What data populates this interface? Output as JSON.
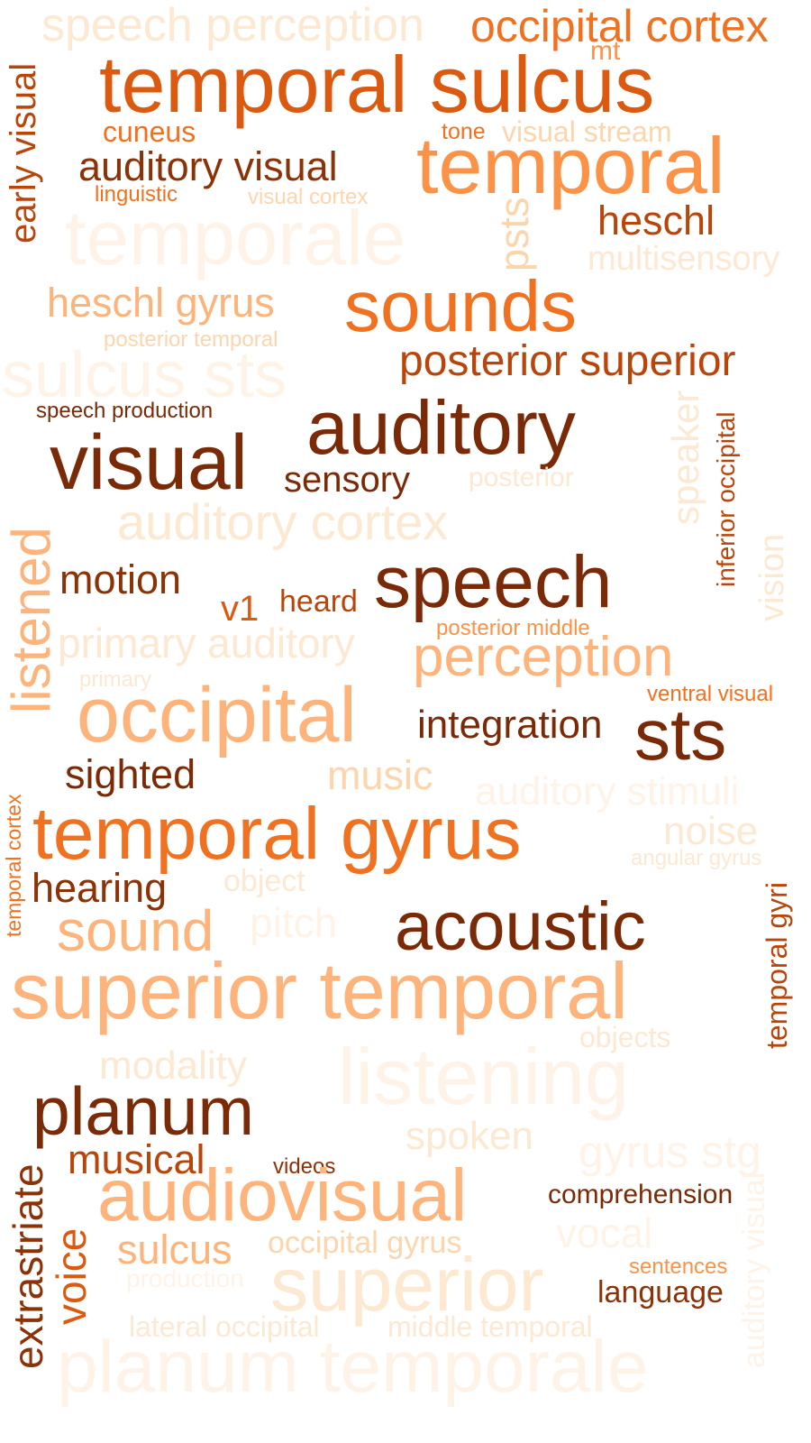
{
  "colors": {
    "c1": "#fde8d2",
    "c2": "#fdd5ad",
    "c3": "#fdb37a",
    "c4": "#fb9245",
    "c5": "#f07221",
    "c6": "#dc5a0f",
    "c7": "#b8450a",
    "c8": "#8c3207",
    "c9": "#7a2a06",
    "c0": "#fff3e8"
  },
  "words": [
    {
      "id": "speech-perception",
      "text": "speech perception",
      "color": "c1",
      "rot": false
    },
    {
      "id": "occipital-cortex",
      "text": "occipital cortex",
      "color": "c5",
      "rot": false
    },
    {
      "id": "mt",
      "text": "mt",
      "color": "c4",
      "rot": false
    },
    {
      "id": "temporal-sulcus",
      "text": "temporal sulcus",
      "color": "c6",
      "rot": false
    },
    {
      "id": "early-visual",
      "text": "early visual",
      "color": "c7",
      "rot": true
    },
    {
      "id": "cuneus",
      "text": "cuneus",
      "color": "c5",
      "rot": false
    },
    {
      "id": "tone",
      "text": "tone",
      "color": "c5",
      "rot": false
    },
    {
      "id": "visual-stream",
      "text": "visual stream",
      "color": "c2",
      "rot": false
    },
    {
      "id": "auditory-visual",
      "text": "auditory visual",
      "color": "c8",
      "rot": false
    },
    {
      "id": "temporal",
      "text": "temporal",
      "color": "c4",
      "rot": false
    },
    {
      "id": "linguistic",
      "text": "linguistic",
      "color": "c5",
      "rot": false
    },
    {
      "id": "visual-cortex",
      "text": "visual cortex",
      "color": "c2",
      "rot": false
    },
    {
      "id": "temporale",
      "text": "temporale",
      "color": "c0",
      "rot": false
    },
    {
      "id": "psts",
      "text": "psts",
      "color": "c2",
      "rot": true
    },
    {
      "id": "heschl",
      "text": "heschl",
      "color": "c7",
      "rot": false
    },
    {
      "id": "multisensory",
      "text": "multisensory",
      "color": "c1",
      "rot": false
    },
    {
      "id": "heschl-gyrus",
      "text": "heschl gyrus",
      "color": "c3",
      "rot": false
    },
    {
      "id": "sounds",
      "text": "sounds",
      "color": "c5",
      "rot": false
    },
    {
      "id": "posterior-temporal",
      "text": "posterior temporal",
      "color": "c2",
      "rot": false
    },
    {
      "id": "sulcus-sts",
      "text": "sulcus sts",
      "color": "c0",
      "rot": false
    },
    {
      "id": "posterior-superior",
      "text": "posterior superior",
      "color": "c7",
      "rot": false
    },
    {
      "id": "speech-production",
      "text": "speech production",
      "color": "c9",
      "rot": false
    },
    {
      "id": "auditory",
      "text": "auditory",
      "color": "c9",
      "rot": false
    },
    {
      "id": "speaker",
      "text": "speaker",
      "color": "c1",
      "rot": true
    },
    {
      "id": "inferior-occipital",
      "text": "inferior occipital",
      "color": "c7",
      "rot": true
    },
    {
      "id": "visual",
      "text": "visual",
      "color": "c9",
      "rot": false
    },
    {
      "id": "sensory",
      "text": "sensory",
      "color": "c9",
      "rot": false
    },
    {
      "id": "posterior",
      "text": "posterior",
      "color": "c1",
      "rot": false
    },
    {
      "id": "auditory-cortex",
      "text": "auditory cortex",
      "color": "c1",
      "rot": false
    },
    {
      "id": "listened",
      "text": "listened",
      "color": "c3",
      "rot": true
    },
    {
      "id": "motion",
      "text": "motion",
      "color": "c8",
      "rot": false
    },
    {
      "id": "speech",
      "text": "speech",
      "color": "c9",
      "rot": false
    },
    {
      "id": "vision",
      "text": "vision",
      "color": "c1",
      "rot": true
    },
    {
      "id": "v1",
      "text": "v1",
      "color": "c6",
      "rot": false
    },
    {
      "id": "heard",
      "text": "heard",
      "color": "c7",
      "rot": false
    },
    {
      "id": "posterior-middle",
      "text": "posterior middle",
      "color": "c4",
      "rot": false
    },
    {
      "id": "primary-auditory",
      "text": "primary auditory",
      "color": "c1",
      "rot": false
    },
    {
      "id": "perception",
      "text": "perception",
      "color": "c3",
      "rot": false
    },
    {
      "id": "primary",
      "text": "primary",
      "color": "c1",
      "rot": false
    },
    {
      "id": "ventral-visual",
      "text": "ventral visual",
      "color": "c5",
      "rot": false
    },
    {
      "id": "occipital",
      "text": "occipital",
      "color": "c3",
      "rot": false
    },
    {
      "id": "integration",
      "text": "integration",
      "color": "c9",
      "rot": false
    },
    {
      "id": "sts",
      "text": "sts",
      "color": "c9",
      "rot": false
    },
    {
      "id": "sighted",
      "text": "sighted",
      "color": "c9",
      "rot": false
    },
    {
      "id": "music",
      "text": "music",
      "color": "c2",
      "rot": false
    },
    {
      "id": "auditory-stimuli",
      "text": "auditory stimuli",
      "color": "c0",
      "rot": false
    },
    {
      "id": "temporal-cortex",
      "text": "temporal cortex",
      "color": "c5",
      "rot": true
    },
    {
      "id": "temporal-gyrus",
      "text": "temporal gyrus",
      "color": "c5",
      "rot": false
    },
    {
      "id": "noise",
      "text": "noise",
      "color": "c1",
      "rot": false
    },
    {
      "id": "angular-gyrus",
      "text": "angular gyrus",
      "color": "c1",
      "rot": false
    },
    {
      "id": "hearing",
      "text": "hearing",
      "color": "c8",
      "rot": false
    },
    {
      "id": "object",
      "text": "object",
      "color": "c1",
      "rot": false
    },
    {
      "id": "sound",
      "text": "sound",
      "color": "c3",
      "rot": false
    },
    {
      "id": "pitch",
      "text": "pitch",
      "color": "c0",
      "rot": false
    },
    {
      "id": "acoustic",
      "text": "acoustic",
      "color": "c9",
      "rot": false
    },
    {
      "id": "temporal-gyri",
      "text": "temporal gyri",
      "color": "c7",
      "rot": true
    },
    {
      "id": "superior-temporal",
      "text": "superior temporal",
      "color": "c3",
      "rot": false
    },
    {
      "id": "objects",
      "text": "objects",
      "color": "c1",
      "rot": false
    },
    {
      "id": "modality",
      "text": "modality",
      "color": "c1",
      "rot": false
    },
    {
      "id": "listening",
      "text": "listening",
      "color": "c0",
      "rot": false
    },
    {
      "id": "planum",
      "text": "planum",
      "color": "c9",
      "rot": false
    },
    {
      "id": "spoken",
      "text": "spoken",
      "color": "c1",
      "rot": false
    },
    {
      "id": "gyrus-stg",
      "text": "gyrus stg",
      "color": "c0",
      "rot": false
    },
    {
      "id": "musical",
      "text": "musical",
      "color": "c7",
      "rot": false
    },
    {
      "id": "videos",
      "text": "videos",
      "color": "c8",
      "rot": false
    },
    {
      "id": "extrastriate",
      "text": "extrastriate",
      "color": "c8",
      "rot": true
    },
    {
      "id": "voice",
      "text": "voice",
      "color": "c6",
      "rot": true
    },
    {
      "id": "audiovisual",
      "text": "audiovisual",
      "color": "c3",
      "rot": false
    },
    {
      "id": "comprehension",
      "text": "comprehension",
      "color": "c9",
      "rot": false
    },
    {
      "id": "auditory-visual-v",
      "text": "auditory visual",
      "color": "c0",
      "rot": true
    },
    {
      "id": "vocal",
      "text": "vocal",
      "color": "c0",
      "rot": false
    },
    {
      "id": "sulcus",
      "text": "sulcus",
      "color": "c3",
      "rot": false
    },
    {
      "id": "occipital-gyrus",
      "text": "occipital gyrus",
      "color": "c2",
      "rot": false
    },
    {
      "id": "production",
      "text": "production",
      "color": "c0",
      "rot": false
    },
    {
      "id": "superior",
      "text": "superior",
      "color": "c1",
      "rot": false
    },
    {
      "id": "sentences",
      "text": "sentences",
      "color": "c4",
      "rot": false
    },
    {
      "id": "language",
      "text": "language",
      "color": "c8",
      "rot": false
    },
    {
      "id": "lateral-occipital",
      "text": "lateral occipital",
      "color": "c1",
      "rot": false
    },
    {
      "id": "middle-temporal",
      "text": "middle temporal",
      "color": "c1",
      "rot": false
    },
    {
      "id": "planum-temporale",
      "text": "planum temporale",
      "color": "c0",
      "rot": false
    }
  ]
}
